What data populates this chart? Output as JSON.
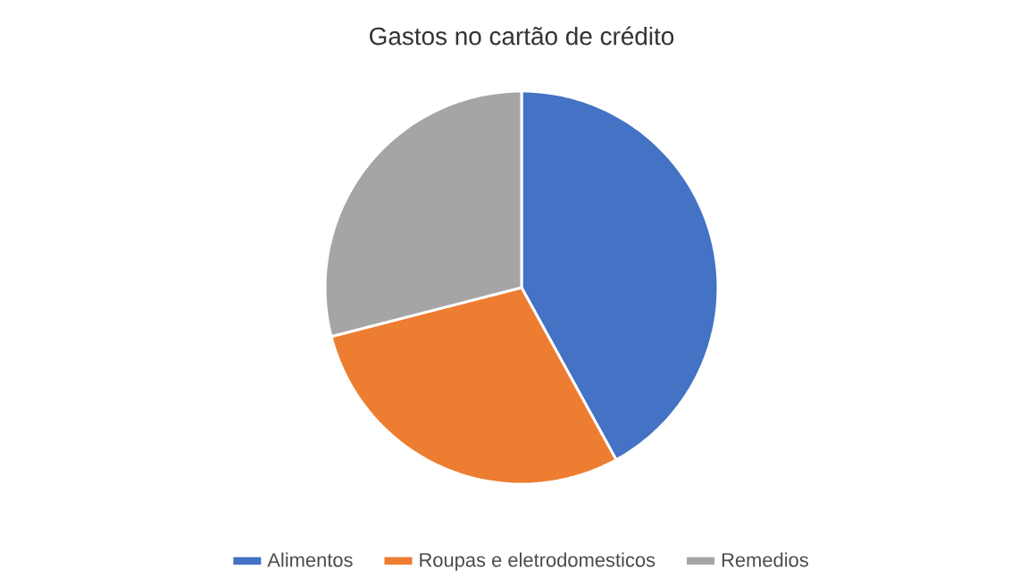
{
  "chart_data": {
    "type": "pie",
    "title": "Gastos no cartão de crédito",
    "categories": [
      "Alimentos",
      "Roupas e eletrodomesticos",
      "Remedios"
    ],
    "values": [
      42,
      29,
      29
    ],
    "colors": [
      "#4472c4",
      "#ed7d31",
      "#a5a5a5"
    ],
    "legend": "bottom"
  }
}
